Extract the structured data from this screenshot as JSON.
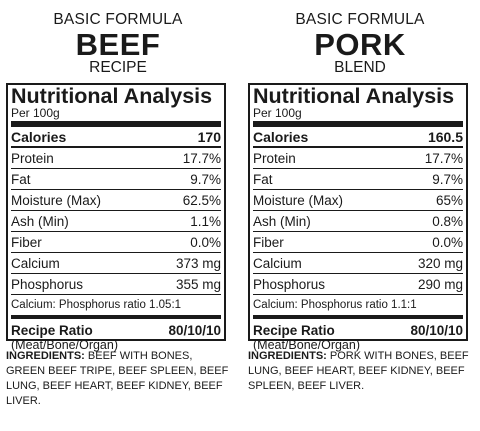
{
  "panels": [
    {
      "header_top": "BASIC FORMULA",
      "name": "BEEF",
      "header_sub": "RECIPE",
      "title": "Nutritional Analysis",
      "per": "Per 100g",
      "calories_label": "Calories",
      "calories_value": "170",
      "rows": [
        {
          "label": "Protein",
          "value": "17.7%"
        },
        {
          "label": "Fat",
          "value": "9.7%"
        },
        {
          "label": "Moisture (Max)",
          "value": "62.5%"
        },
        {
          "label": "Ash (Min)",
          "value": "1.1%"
        },
        {
          "label": "Fiber",
          "value": "0.0%"
        },
        {
          "label": "Calcium",
          "value": "373 mg"
        },
        {
          "label": "Phosphorus",
          "value": "355 mg"
        }
      ],
      "ratio_line": "Calcium: Phosphorus ratio 1.05:1",
      "recipe_ratio_label": "Recipe Ratio",
      "recipe_ratio_value": "80/10/10",
      "recipe_ratio_sub": "(Meat/Bone/Organ)",
      "ingredients_label": "INGREDIENTS:",
      "ingredients_text": "BEEF WITH BONES, GREEN BEEF TRIPE, BEEF SPLEEN, BEEF LUNG, BEEF HEART, BEEF KIDNEY, BEEF LIVER."
    },
    {
      "header_top": "BASIC FORMULA",
      "name": "PORK",
      "header_sub": "BLEND",
      "title": "Nutritional Analysis",
      "per": "Per 100g",
      "calories_label": "Calories",
      "calories_value": "160.5",
      "rows": [
        {
          "label": "Protein",
          "value": "17.7%"
        },
        {
          "label": "Fat",
          "value": "9.7%"
        },
        {
          "label": "Moisture (Max)",
          "value": "65%"
        },
        {
          "label": "Ash (Min)",
          "value": "0.8%"
        },
        {
          "label": "Fiber",
          "value": "0.0%"
        },
        {
          "label": "Calcium",
          "value": "320 mg"
        },
        {
          "label": "Phosphorus",
          "value": "290 mg"
        }
      ],
      "ratio_line": "Calcium: Phosphorus ratio 1.1:1",
      "recipe_ratio_label": "Recipe Ratio",
      "recipe_ratio_value": "80/10/10",
      "recipe_ratio_sub": "(Meat/Bone/Organ)",
      "ingredients_label": "INGREDIENTS:",
      "ingredients_text": "PORK WITH BONES, BEEF LUNG, BEEF HEART, BEEF KIDNEY, BEEF SPLEEN, BEEF LIVER."
    }
  ]
}
